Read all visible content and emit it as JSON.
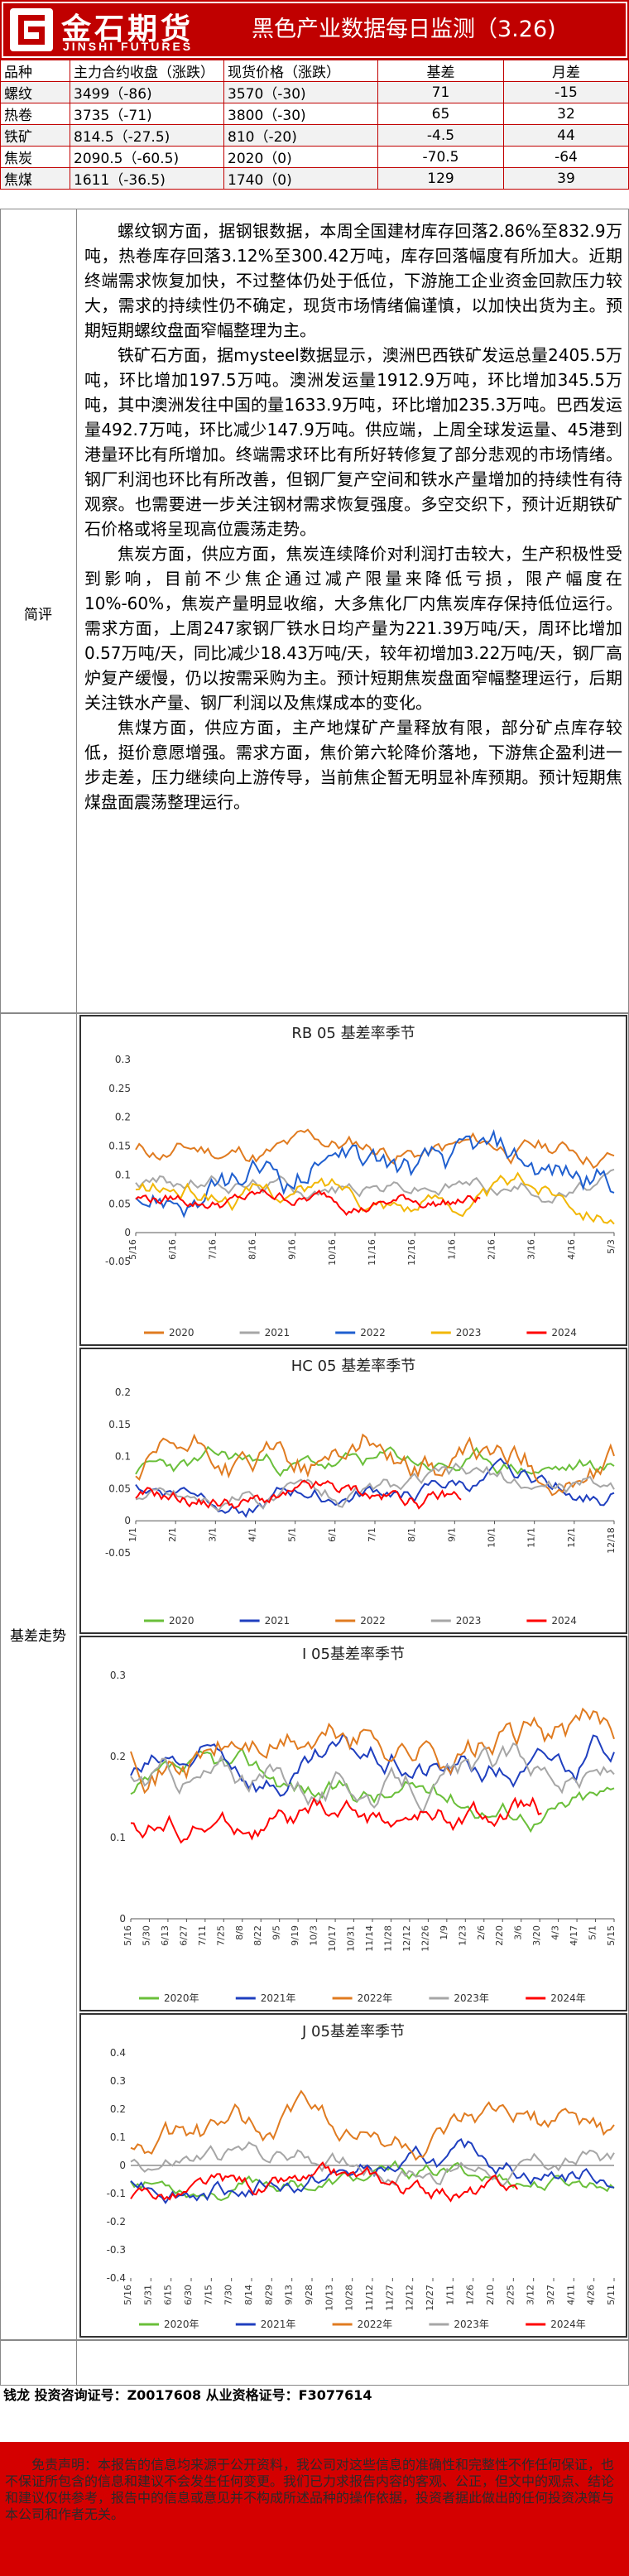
{
  "header": {
    "logo_cn": "金石期货",
    "logo_en": "JINSHI FUTURES",
    "title": "黑色产业数据每日监测（3.26)"
  },
  "price_table": {
    "columns": [
      "品种",
      "主力合约收盘（涨跌）",
      "现货价格（涨跌）",
      "基差",
      "月差"
    ],
    "rows": [
      [
        "螺纹",
        "3499（-86)",
        "3570（-30)",
        "71",
        "-15"
      ],
      [
        "热卷",
        "3735（-71)",
        "3800（-30)",
        "65",
        "32"
      ],
      [
        "铁矿",
        "814.5（-27.5)",
        "810（-20)",
        "-4.5",
        "44"
      ],
      [
        "焦炭",
        "2090.5（-60.5)",
        "2020（0)",
        "-70.5",
        "-64"
      ],
      [
        "焦煤",
        "1611（-36.5)",
        "1740（0)",
        "129",
        "39"
      ]
    ]
  },
  "comment_label": "简评",
  "comment": {
    "p1": "螺纹钢方面，据钢银数据，本周全国建材库存回落2.86%至832.9万吨，热卷库存回落3.12%至300.42万吨，库存回落幅度有所加大。近期终端需求恢复加快，不过整体仍处于低位，下游施工企业资金回款压力较大，需求的持续性仍不确定，现货市场情绪偏谨慎，以加快出货为主。预期短期螺纹盘面窄幅整理为主。",
    "p2": "铁矿石方面，据mysteel数据显示，澳洲巴西铁矿发运总量2405.5万吨，环比增加197.5万吨。澳洲发运量1912.9万吨，环比增加345.5万吨，其中澳洲发往中国的量1633.9万吨，环比增加235.3万吨。巴西发运量492.7万吨，环比减少147.9万吨。供应端，上周全球发运量、45港到港量环比有所增加。终端需求环比有所好转修复了部分悲观的市场情绪。钢厂利润也环比有所改善，但钢厂复产空间和铁水产量增加的持续性有待观察。也需要进一步关注钢材需求恢复强度。多空交织下，预计近期铁矿石价格或将呈现高位震荡走势。",
    "p3": "焦炭方面，供应方面，焦炭连续降价对利润打击较大，生产积极性受到影响，目前不少焦企通过减产限量来降低亏损，限产幅度在10%-60%，焦炭产量明显收缩，大多焦化厂内焦炭库存保持低位运行。需求方面，上周247家钢厂铁水日均产量为221.39万吨/天，周环比增加0.57万吨/天，同比减少18.43万吨/天，较年初增加3.22万吨/天，钢厂高炉复产缓慢，仍以按需采购为主。预计短期焦炭盘面窄幅整理运行，后期关注铁水产量、钢厂利润以及焦煤成本的变化。",
    "p4": "焦煤方面，供应方面，主产地煤矿产量释放有限，部分矿点库存较低，挺价意愿增强。需求方面，焦价第六轮降价落地，下游焦企盈利进一步走差，压力继续向上游传导，当前焦企暂无明显补库预期。预计短期焦煤盘面震荡整理运行。"
  },
  "basis_label": "基差走势",
  "charts": {
    "rb": {
      "title": "RB 05 基差率季节",
      "y_ticks": [
        "0.3",
        "0.25",
        "0.2",
        "0.15",
        "0.1",
        "0.05",
        "0",
        "-0.05"
      ],
      "x_ticks": [
        "5/16",
        "6/16",
        "7/16",
        "8/16",
        "9/16",
        "10/16",
        "11/16",
        "12/16",
        "1/16",
        "2/16",
        "3/16",
        "4/16",
        "5/3"
      ],
      "legend": [
        "2020",
        "2021",
        "2022",
        "2023",
        "2024"
      ]
    },
    "hc": {
      "title": "HC 05 基差率季节",
      "y_ticks": [
        "0.2",
        "0.15",
        "0.1",
        "0.05",
        "0",
        "-0.05"
      ],
      "x_ticks": [
        "1/1",
        "2/1",
        "3/1",
        "4/1",
        "5/1",
        "6/1",
        "7/1",
        "8/1",
        "9/1",
        "10/1",
        "11/1",
        "12/1",
        "12/18"
      ],
      "legend": [
        "2020",
        "2021",
        "2022",
        "2023",
        "2024"
      ]
    },
    "i": {
      "title": "I 05基差率季节",
      "y_ticks": [
        "0.3",
        "0.2",
        "0.1",
        "0"
      ],
      "x_ticks": [
        "5/16",
        "5/30",
        "6/13",
        "6/27",
        "7/11",
        "7/25",
        "8/8",
        "8/22",
        "9/5",
        "9/19",
        "10/3",
        "10/17",
        "10/31",
        "11/14",
        "11/28",
        "12/12",
        "12/26",
        "1/9",
        "1/23",
        "2/6",
        "2/20",
        "3/6",
        "3/20",
        "4/3",
        "4/17",
        "5/1",
        "5/15"
      ],
      "legend": [
        "2020年",
        "2021年",
        "2022年",
        "2023年",
        "2024年"
      ]
    },
    "j": {
      "title": "J 05基差率季节",
      "y_ticks": [
        "0.4",
        "0.3",
        "0.2",
        "0.1",
        "0",
        "-0.1",
        "-0.2",
        "-0.3",
        "-0.4"
      ],
      "x_ticks": [
        "5/16",
        "5/31",
        "6/15",
        "6/30",
        "7/15",
        "7/30",
        "8/14",
        "8/29",
        "9/13",
        "9/28",
        "10/13",
        "10/28",
        "11/12",
        "11/27",
        "12/12",
        "12/27",
        "1/11",
        "1/26",
        "2/10",
        "2/25",
        "3/12",
        "3/27",
        "4/11",
        "4/26",
        "5/11"
      ],
      "legend": [
        "2020年",
        "2021年",
        "2022年",
        "2023年",
        "2024年"
      ]
    }
  },
  "series_colors": {
    "2020": "#6abf3a",
    "2021": "#1f3fbf",
    "2022": "#e07b20",
    "2023": "#a6a6a6",
    "2024": "#ff0000",
    "rb2020": "#e07b20",
    "rb2021": "#a6a6a6",
    "rb2022": "#1f5fcf",
    "rb2023": "#f2b705",
    "rb2024": "#ff0000"
  },
  "analyst": "钱龙 投资咨询证号：Z0017608 从业资格证号：F3077614",
  "disclaimer": "免责声明：本报告的信息均来源于公开资料，我公司对这些信息的准确性和完整性不作任何保证，也不保证所包含的信息和建议不会发生任何变更。我们已力求报告内容的客观、公正，但文中的观点、结论和建议仅供参考，报告中的信息或意见并不构成所述品种的操作依据，投资者据此做出的任何投资决策与本公司和作者无关。"
}
